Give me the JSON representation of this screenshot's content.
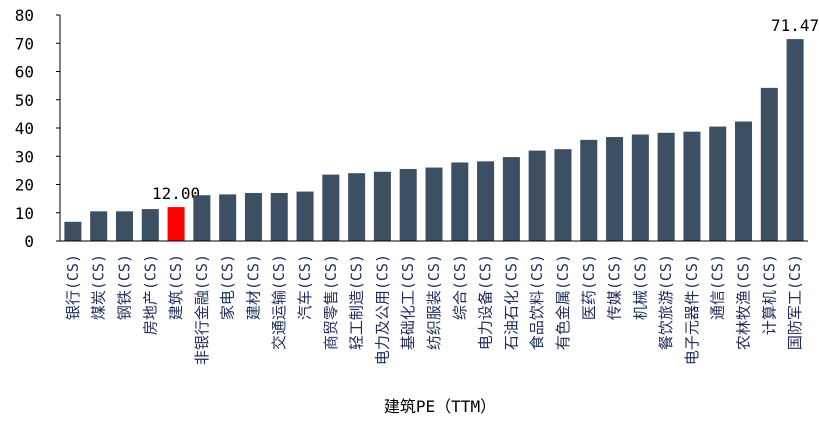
{
  "chart_data": {
    "type": "bar",
    "x_label": "建筑PE（TTM）",
    "categories": [
      "银行(CS)",
      "煤炭(CS)",
      "钢铁(CS)",
      "房地产(CS)",
      "建筑(CS)",
      "非银行金融(CS)",
      "家电(CS)",
      "建材(CS)",
      "交通运输(CS)",
      "汽车(CS)",
      "商贸零售(CS)",
      "轻工制造(CS)",
      "电力及公用(CS)",
      "基础化工(CS)",
      "纺织服装(CS)",
      "综合(CS)",
      "电力设备(CS)",
      "石油石化(CS)",
      "食品饮料(CS)",
      "有色金属(CS)",
      "医药(CS)",
      "传媒(CS)",
      "机械(CS)",
      "餐饮旅游(CS)",
      "电子元器件(CS)",
      "通信(CS)",
      "农林牧渔(CS)",
      "计算机(CS)",
      "国防军工(CS)"
    ],
    "values": [
      6.8,
      10.5,
      10.5,
      11.3,
      12.0,
      16.2,
      16.5,
      17,
      17,
      17.5,
      23.5,
      24,
      24.5,
      25.5,
      26,
      27.8,
      28.2,
      29.7,
      32,
      32.5,
      35.8,
      36.8,
      37.7,
      38.3,
      38.7,
      40.5,
      42.3,
      54.2,
      71.47
    ],
    "value_labels": [
      null,
      null,
      null,
      null,
      "12.00",
      null,
      null,
      null,
      null,
      null,
      null,
      null,
      null,
      null,
      null,
      null,
      null,
      null,
      null,
      null,
      null,
      null,
      null,
      null,
      null,
      null,
      null,
      null,
      "71.47"
    ],
    "color": "#3d4f63",
    "highlight": {
      "index": 4,
      "color": "#ff0000"
    },
    "ylim": [
      0,
      80
    ],
    "yticks": [
      0,
      10,
      20,
      30,
      40,
      50,
      60,
      70,
      80
    ],
    "grid": false
  }
}
